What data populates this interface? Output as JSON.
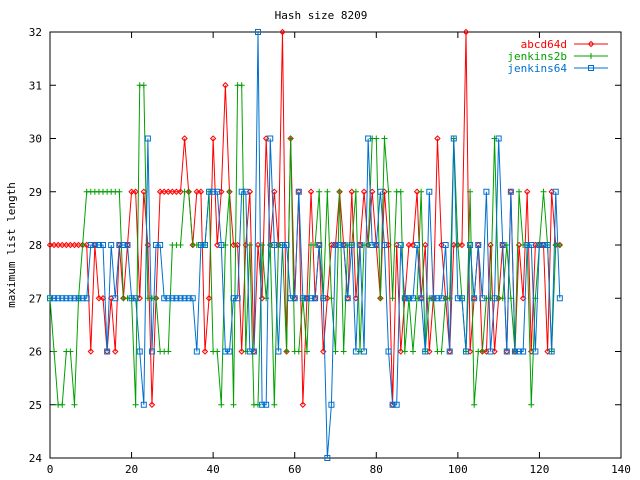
{
  "chart_data": {
    "type": "line",
    "title": "Hash size 8209",
    "xlabel": "",
    "ylabel": "maximum list length",
    "xlim": [
      0,
      140
    ],
    "ylim": [
      24,
      32
    ],
    "xticks": [
      0,
      20,
      40,
      60,
      80,
      100,
      120,
      140
    ],
    "yticks": [
      24,
      25,
      26,
      27,
      28,
      29,
      30,
      31,
      32
    ],
    "grid": false,
    "legend_position": "top-right",
    "series": [
      {
        "name": "abcd64d",
        "color": "#ff0000",
        "marker": "diamond",
        "values": [
          28,
          28,
          28,
          28,
          28,
          28,
          28,
          28,
          28,
          28,
          26,
          28,
          27,
          27,
          26,
          27,
          26,
          28,
          27,
          28,
          29,
          29,
          27,
          29,
          28,
          25,
          27,
          29,
          29,
          29,
          29,
          29,
          29,
          30,
          29,
          28,
          29,
          29,
          26,
          27,
          30,
          28,
          29,
          31,
          29,
          28,
          28,
          26,
          28,
          29,
          26,
          28,
          27,
          30,
          28,
          29,
          28,
          32,
          26,
          30,
          27,
          29,
          25,
          27,
          29,
          27,
          28,
          26,
          27,
          28,
          28,
          29,
          28,
          27,
          29,
          27,
          28,
          29,
          28,
          29,
          28,
          27,
          29,
          28,
          25,
          28,
          26,
          27,
          28,
          28,
          29,
          27,
          28,
          26,
          27,
          30,
          28,
          27,
          26,
          28,
          28,
          28,
          32,
          26,
          27,
          28,
          26,
          26,
          28,
          26,
          27,
          28,
          26,
          29,
          26,
          28,
          27,
          29,
          26,
          28,
          28,
          28,
          26,
          29,
          28,
          28
        ]
      },
      {
        "name": "jenkins2b",
        "color": "#00a000",
        "marker": "plus",
        "values": [
          27,
          26,
          25,
          25,
          26,
          26,
          25,
          27,
          28,
          29,
          29,
          29,
          29,
          29,
          29,
          29,
          29,
          29,
          27,
          27,
          27,
          25,
          31,
          31,
          27,
          27,
          27,
          26,
          26,
          26,
          28,
          28,
          28,
          29,
          29,
          28,
          28,
          28,
          28,
          29,
          26,
          26,
          25,
          28,
          29,
          25,
          31,
          31,
          26,
          28,
          25,
          25,
          28,
          27,
          28,
          25,
          28,
          28,
          26,
          30,
          26,
          26,
          27,
          26,
          28,
          28,
          29,
          27,
          29,
          27,
          26,
          29,
          26,
          28,
          28,
          29,
          26,
          28,
          28,
          30,
          30,
          27,
          30,
          29,
          27,
          29,
          29,
          26,
          27,
          26,
          27,
          29,
          26,
          27,
          27,
          26,
          26,
          27,
          27,
          30,
          28,
          27,
          26,
          29,
          25,
          26,
          26,
          27,
          27,
          30,
          27,
          27,
          28,
          27,
          26,
          29,
          28,
          28,
          25,
          27,
          28,
          29,
          28,
          26,
          28,
          28
        ]
      },
      {
        "name": "jenkins64",
        "color": "#0070d0",
        "marker": "square",
        "values": [
          27,
          27,
          27,
          27,
          27,
          27,
          27,
          27,
          27,
          27,
          28,
          28,
          28,
          28,
          26,
          28,
          27,
          28,
          28,
          28,
          27,
          27,
          26,
          25,
          30,
          26,
          28,
          28,
          27,
          27,
          27,
          27,
          27,
          27,
          27,
          27,
          26,
          28,
          28,
          29,
          29,
          29,
          28,
          26,
          26,
          27,
          27,
          29,
          29,
          26,
          26,
          32,
          25,
          25,
          30,
          28,
          26,
          28,
          28,
          27,
          27,
          29,
          27,
          27,
          27,
          27,
          28,
          27,
          24,
          25,
          28,
          28,
          28,
          27,
          28,
          26,
          28,
          26,
          30,
          28,
          28,
          29,
          28,
          26,
          25,
          25,
          28,
          27,
          27,
          27,
          28,
          27,
          26,
          29,
          27,
          27,
          27,
          28,
          26,
          30,
          27,
          27,
          26,
          28,
          27,
          28,
          27,
          29,
          26,
          27,
          30,
          28,
          26,
          29,
          26,
          26,
          26,
          28,
          28,
          26,
          28,
          28,
          28,
          26,
          29,
          27
        ]
      }
    ]
  }
}
